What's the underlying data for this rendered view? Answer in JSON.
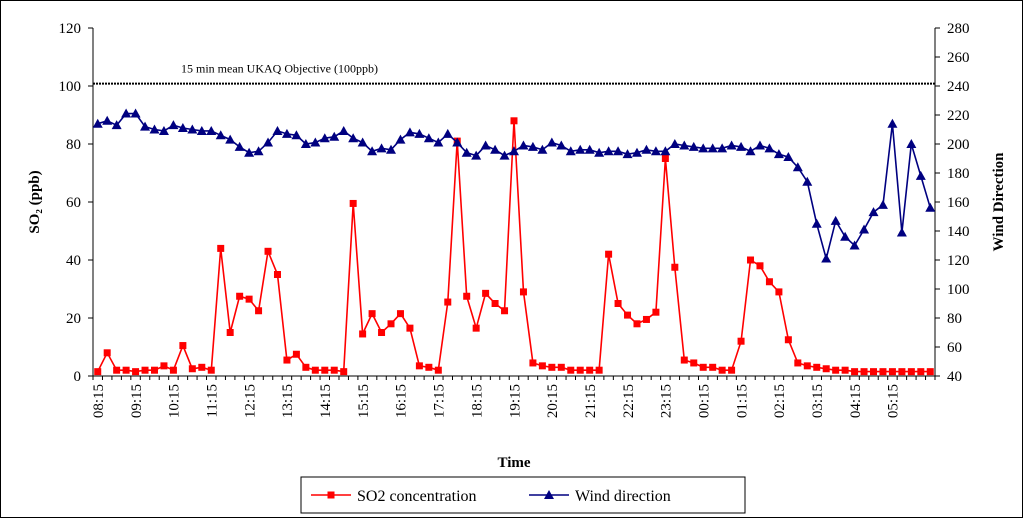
{
  "chart_data": {
    "type": "line",
    "title": "",
    "xlabel": "Time",
    "ylabel": "SO₂ (ppb)",
    "y2label": "Wind Direction",
    "ylim": [
      0,
      120
    ],
    "y2lim": [
      40,
      280
    ],
    "yticks": [
      "0",
      "20",
      "40",
      "60",
      "80",
      "100",
      "120"
    ],
    "y2ticks": [
      "40",
      "60",
      "80",
      "100",
      "120",
      "140",
      "160",
      "180",
      "200",
      "220",
      "240",
      "260",
      "280"
    ],
    "x_tick_labels": [
      "08:15",
      "09:15",
      "10:15",
      "11:15",
      "12:15",
      "13:15",
      "14:15",
      "15:15",
      "16:15",
      "17:15",
      "18:15",
      "19:15",
      "20:15",
      "21:15",
      "22:15",
      "23:15",
      "00:15",
      "01:15",
      "02:15",
      "03:15",
      "04:15",
      "05:15"
    ],
    "x_tick_every": 4,
    "grid": false,
    "legend_position": "bottom-center",
    "annotation": {
      "text": "15 min mean UKAQ Objective (100ppb)",
      "value": 100.8
    },
    "series": [
      {
        "name": "SO2 concentration",
        "axis": "left",
        "color": "#ff0000",
        "marker": "square",
        "values": [
          1.5,
          8,
          2,
          2,
          1.5,
          2,
          2,
          3.5,
          2,
          10.5,
          2.5,
          3,
          2,
          44,
          15,
          27.5,
          26.5,
          22.5,
          43,
          35,
          5.5,
          7.5,
          3,
          2,
          2,
          2,
          1.5,
          59.5,
          14.5,
          21.5,
          15,
          18,
          21.5,
          16.5,
          3.5,
          3,
          2,
          25.5,
          81,
          27.5,
          16.5,
          28.5,
          25,
          22.5,
          88,
          29,
          4.5,
          3.5,
          3,
          3,
          2,
          2,
          2,
          2,
          42,
          25,
          21,
          18,
          19.5,
          22,
          75,
          37.5,
          5.5,
          4.5,
          3,
          3,
          2,
          2,
          12,
          40,
          38,
          32.5,
          29,
          12.5,
          4.5,
          3.5,
          3,
          2.5,
          2,
          2,
          1.5,
          1.5,
          1.5,
          1.5,
          1.5,
          1.5,
          1.5,
          1.5,
          1.5
        ]
      },
      {
        "name": "Wind direction",
        "axis": "right",
        "color": "#000080",
        "marker": "triangle",
        "values": [
          214,
          216,
          213,
          221,
          221,
          212,
          210,
          209,
          213,
          211,
          210,
          209,
          209,
          206,
          203,
          198,
          194,
          195,
          201,
          209,
          207,
          206,
          200,
          201,
          204,
          205,
          209,
          204,
          201,
          195,
          197,
          196,
          203,
          208,
          207,
          204,
          201,
          207,
          201,
          194,
          192,
          199,
          196,
          192,
          195,
          199,
          198,
          196,
          201,
          199,
          195,
          196,
          196,
          194,
          195,
          195,
          193,
          194,
          196,
          195,
          195,
          200,
          199,
          198,
          197,
          197,
          197,
          199,
          198,
          195,
          199,
          197,
          193,
          191,
          184,
          174,
          145,
          121,
          147,
          136,
          130,
          141,
          153,
          158,
          214,
          139,
          200,
          178,
          156
        ]
      }
    ]
  }
}
